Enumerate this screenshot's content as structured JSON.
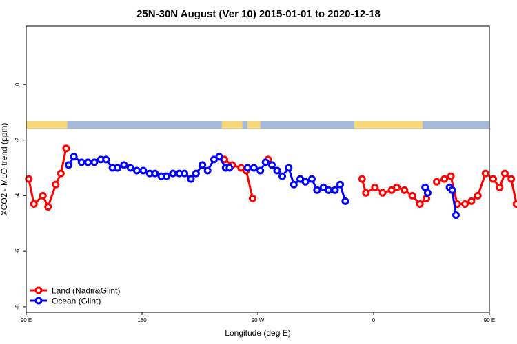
{
  "chart_data": {
    "type": "line",
    "title": "25N-30N August (Ver 10)   2015-01-01 to 2020-12-18",
    "xlabel": "Longitude (deg E)",
    "ylabel": "XCO2 - MLO trend (ppm)",
    "x_range_deg_east": [
      90,
      450
    ],
    "ylim": [
      -8.2,
      2.1
    ],
    "x_ticks": [
      {
        "value": 90,
        "label": "90 E"
      },
      {
        "value": 180,
        "label": "180"
      },
      {
        "value": 270,
        "label": "90 W"
      },
      {
        "value": 360,
        "label": "0"
      },
      {
        "value": 450,
        "label": "90 E"
      },
      {
        "value": 540,
        "label": "180"
      }
    ],
    "y_ticks": [
      {
        "value": 0,
        "label": "0"
      },
      {
        "value": -2,
        "label": "-2"
      },
      {
        "value": -4,
        "label": "-4"
      },
      {
        "value": -6,
        "label": "-6"
      },
      {
        "value": -8,
        "label": "-8"
      }
    ],
    "land_ocean_strip": {
      "land_color": "#f5d77a",
      "ocean_color": "#a5bad9",
      "land_segments": [
        [
          90,
          122
        ],
        [
          242,
          258
        ],
        [
          262,
          272
        ],
        [
          345,
          398
        ]
      ]
    },
    "legend": {
      "position": "bottom-left",
      "entries": [
        {
          "label": "Land (Nadir&Glint)",
          "color": "#ff0000"
        },
        {
          "label": "Ocean (Glint)",
          "color": "#0000ff"
        }
      ]
    },
    "series": [
      {
        "name": "Land (Nadir&Glint)",
        "color": "#ff0000",
        "segments": [
          [
            [
              92,
              -3.4
            ],
            [
              96,
              -4.3
            ],
            [
              103,
              -4.0
            ],
            [
              107,
              -4.4
            ],
            [
              113,
              -3.6
            ],
            [
              117,
              -3.2
            ],
            [
              121,
              -2.3
            ]
          ],
          [
            [
              244,
              -2.7
            ],
            [
              250,
              -2.9
            ],
            [
              257,
              -3.0
            ],
            [
              261,
              -3.1
            ],
            [
              266,
              -4.1
            ]
          ],
          [
            [
              278,
              -2.7
            ]
          ],
          [
            [
              351,
              -3.4
            ],
            [
              354,
              -3.9
            ],
            [
              361,
              -3.7
            ],
            [
              367,
              -3.9
            ],
            [
              374,
              -3.8
            ],
            [
              378,
              -3.7
            ],
            [
              384,
              -3.8
            ],
            [
              390,
              -4.0
            ],
            [
              396,
              -4.3
            ],
            [
              401,
              -4.1
            ]
          ],
          [
            [
              409,
              -3.5
            ],
            [
              415,
              -3.4
            ],
            [
              420,
              -3.3
            ],
            [
              425,
              -4.3
            ],
            [
              431,
              -4.3
            ],
            [
              436,
              -4.2
            ],
            [
              441,
              -4.0
            ],
            [
              447,
              -3.2
            ],
            [
              453,
              -3.4
            ],
            [
              458,
              -3.7
            ],
            [
              462,
              -3.2
            ],
            [
              467,
              -3.4
            ],
            [
              471,
              -4.3
            ],
            [
              477,
              -4.0
            ],
            [
              481,
              -4.4
            ],
            [
              486,
              -3.6
            ],
            [
              491,
              -3.2
            ],
            [
              495,
              -2.3
            ]
          ]
        ]
      },
      {
        "name": "Ocean (Glint)",
        "color": "#0000ff",
        "segments": [
          [
            [
              123,
              -2.9
            ],
            [
              127,
              -2.6
            ],
            [
              133,
              -2.8
            ],
            [
              138,
              -2.8
            ],
            [
              143,
              -2.8
            ],
            [
              148,
              -2.7
            ],
            [
              152,
              -2.7
            ],
            [
              157,
              -3.0
            ],
            [
              161,
              -3.0
            ],
            [
              166,
              -2.9
            ],
            [
              171,
              -3.0
            ],
            [
              176,
              -3.1
            ],
            [
              181,
              -3.1
            ],
            [
              186,
              -3.2
            ],
            [
              190,
              -3.2
            ],
            [
              195,
              -3.3
            ],
            [
              199,
              -3.3
            ],
            [
              204,
              -3.2
            ],
            [
              209,
              -3.2
            ],
            [
              213,
              -3.2
            ],
            [
              218,
              -3.4
            ],
            [
              222,
              -3.2
            ],
            [
              227,
              -2.9
            ],
            [
              231,
              -3.1
            ],
            [
              236,
              -2.7
            ],
            [
              240,
              -2.6
            ],
            [
              245,
              -3.0
            ],
            [
              248,
              -3.0
            ]
          ],
          [
            [
              262,
              -3.0
            ],
            [
              267,
              -3.0
            ],
            [
              272,
              -3.1
            ],
            [
              276,
              -2.8
            ],
            [
              281,
              -2.9
            ],
            [
              285,
              -3.1
            ],
            [
              289,
              -3.3
            ],
            [
              294,
              -3.0
            ],
            [
              298,
              -3.6
            ],
            [
              303,
              -3.4
            ],
            [
              307,
              -3.5
            ],
            [
              312,
              -3.4
            ],
            [
              316,
              -3.8
            ],
            [
              321,
              -3.7
            ],
            [
              325,
              -3.8
            ],
            [
              330,
              -3.8
            ],
            [
              334,
              -3.6
            ],
            [
              338,
              -4.2
            ]
          ],
          [
            [
              400,
              -3.7
            ],
            [
              402,
              -3.9
            ]
          ],
          [
            [
              419,
              -3.7
            ],
            [
              421,
              -3.8
            ],
            [
              424,
              -4.7
            ]
          ],
          [
            [
              497,
              -2.9
            ],
            [
              501,
              -2.6
            ],
            [
              506,
              -2.8
            ],
            [
              511,
              -2.8
            ],
            [
              515,
              -2.8
            ],
            [
              520,
              -2.7
            ],
            [
              524,
              -2.7
            ],
            [
              529,
              -3.0
            ],
            [
              533,
              -3.0
            ],
            [
              538,
              -2.9
            ],
            [
              542,
              -3.0
            ],
            [
              546,
              -3.1
            ]
          ]
        ]
      }
    ]
  }
}
